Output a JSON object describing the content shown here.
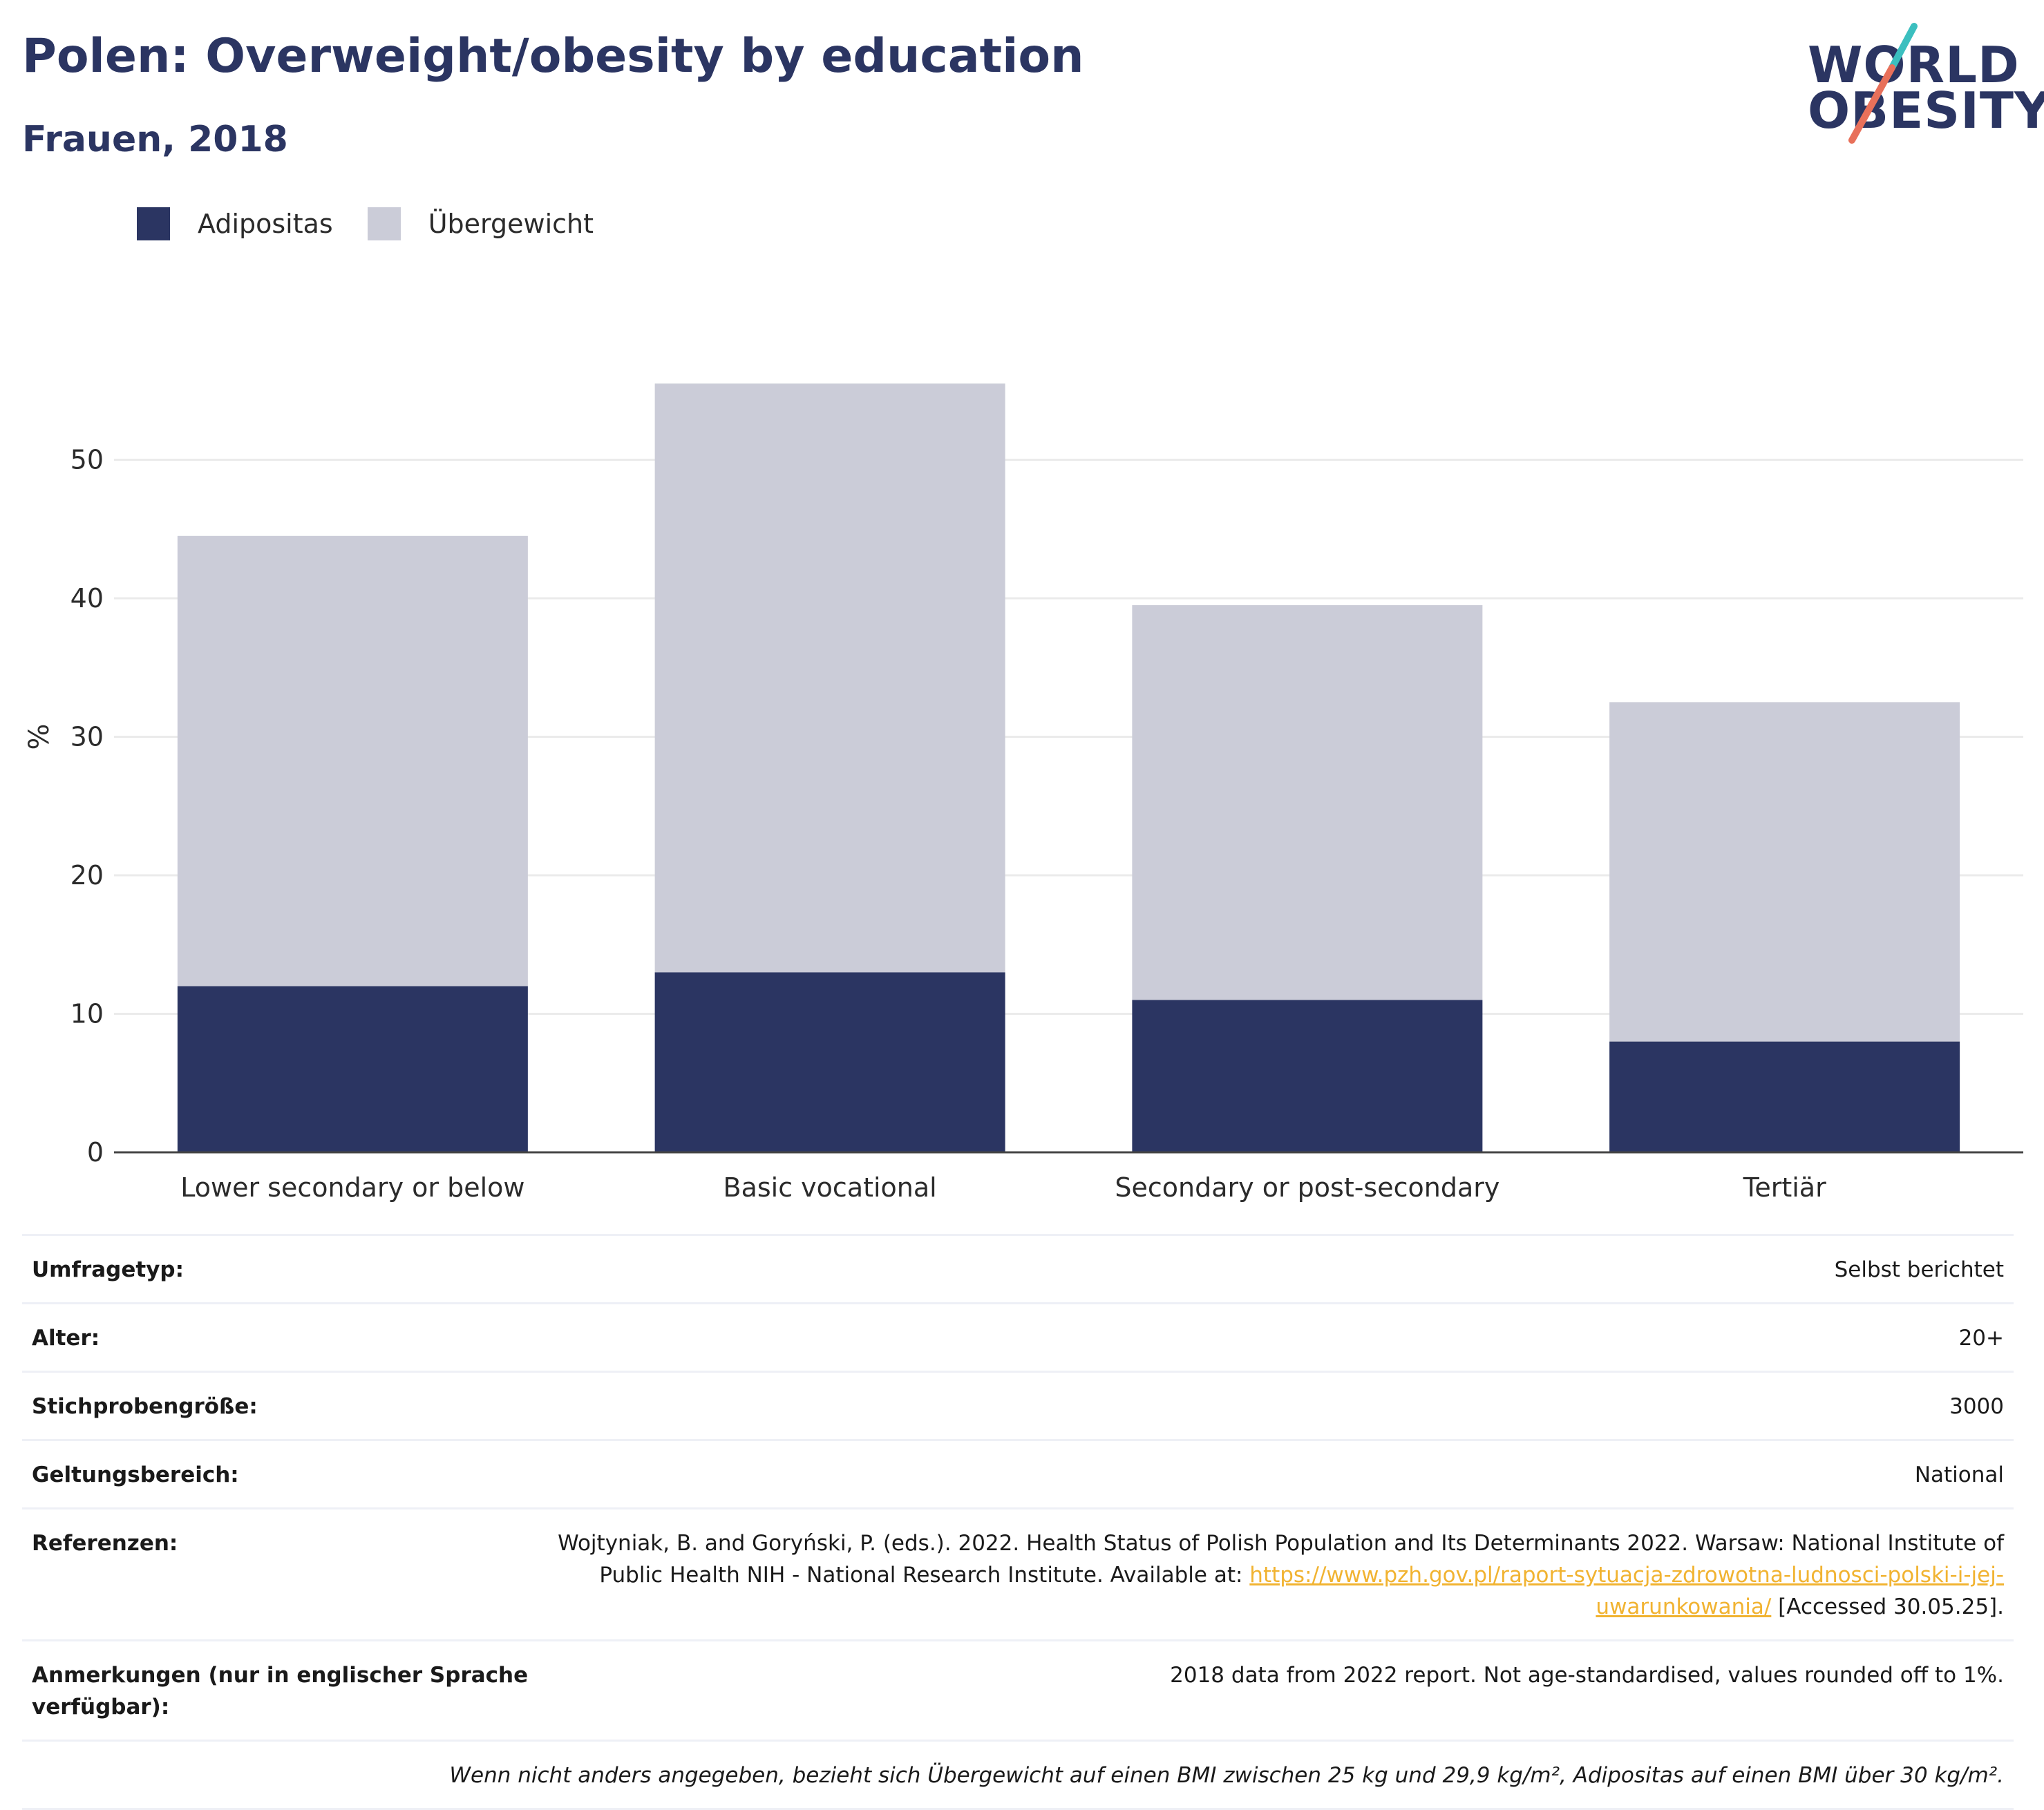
{
  "header": {
    "title": "Polen: Overweight/obesity by education",
    "subtitle": "Frauen, 2018"
  },
  "logo": {
    "line1": "WORLD",
    "line2": "OBESITY",
    "slash_colors": [
      "#3bbfbf",
      "#e8705a"
    ]
  },
  "colors": {
    "obesity": "#2b3562",
    "overweight": "#cbccd8",
    "gridline": "#ebebeb",
    "axis": "#444444",
    "link": "#f1b331"
  },
  "legend": [
    {
      "label": "Adipositas",
      "color": "#2b3562"
    },
    {
      "label": "Übergewicht",
      "color": "#cbccd8"
    }
  ],
  "chart_data": {
    "type": "bar",
    "stacked": true,
    "categories": [
      "Lower secondary or below",
      "Basic vocational",
      "Secondary or post-secondary",
      "Tertiär"
    ],
    "series": [
      {
        "name": "Adipositas",
        "values": [
          12,
          13,
          11,
          8
        ]
      },
      {
        "name": "Übergewicht",
        "values": [
          32.5,
          42.5,
          28.5,
          24.5
        ]
      }
    ],
    "totals": [
      44.5,
      55.5,
      39.5,
      32.5
    ],
    "ylabel": "%",
    "xlabel": "",
    "ylim": [
      0,
      60
    ],
    "yticks": [
      0,
      10,
      20,
      30,
      40,
      50
    ],
    "grid": true,
    "legend_position": "top-left"
  },
  "meta": {
    "rows": [
      {
        "key": "Umfragetyp:",
        "value": "Selbst berichtet"
      },
      {
        "key": "Alter:",
        "value": "20+"
      },
      {
        "key": "Stichprobengröße:",
        "value": "3000"
      },
      {
        "key": "Geltungsbereich:",
        "value": "National"
      }
    ],
    "reference": {
      "key": "Referenzen:",
      "text_before": "Wojtyniak, B. and Goryński, P. (eds.). 2022. Health Status of Polish Population and Its Determinants 2022. Warsaw: National Institute of Public Health NIH - National Research Institute. Available at: ",
      "link": "https://www.pzh.gov.pl/raport-sytuacja-zdrowotna-ludnosci-polski-i-jej-uwarunkowania/",
      "text_after": " [Accessed 30.05.25]."
    },
    "notes": {
      "key": "Anmerkungen (nur in englischer Sprache verfügbar):",
      "value": "2018 data from 2022 report. Not age-standardised, values rounded off to 1%."
    },
    "footnote": "Wenn nicht anders angegeben, bezieht sich Übergewicht auf einen BMI zwischen 25 kg und 29,9 kg/m², Adipositas auf einen BMI über 30 kg/m²."
  }
}
